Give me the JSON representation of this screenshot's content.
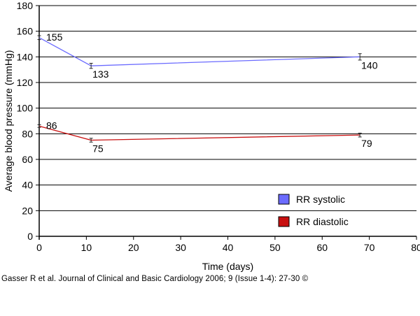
{
  "chart_data": {
    "type": "line",
    "xlabel": "Time (days)",
    "ylabel": "Average blood pressure (mmHg)",
    "xlim": [
      0,
      80
    ],
    "ylim": [
      0,
      180
    ],
    "x_ticks": [
      0,
      10,
      20,
      30,
      40,
      50,
      60,
      70,
      80
    ],
    "y_ticks": [
      0,
      20,
      40,
      60,
      80,
      100,
      120,
      140,
      160,
      180
    ],
    "grid": "horizontal",
    "legend_position": "bottom-right",
    "series": [
      {
        "name": "RR systolic",
        "color": "#6b6bff",
        "x": [
          0,
          11,
          68
        ],
        "y": [
          155,
          133,
          140
        ],
        "labels": [
          "155",
          "133",
          "140"
        ],
        "error": [
          1.5,
          2,
          2.5
        ]
      },
      {
        "name": "RR diastolic",
        "color": "#c81010",
        "x": [
          0,
          11,
          68
        ],
        "y": [
          86,
          75,
          79
        ],
        "labels": [
          "86",
          "75",
          "79"
        ],
        "error": [
          1,
          1.5,
          1.5
        ]
      }
    ]
  },
  "credit": "Gasser R et al. Journal of Clinical and Basic Cardiology 2006; 9 (Issue 1-4): 27-30 ©"
}
